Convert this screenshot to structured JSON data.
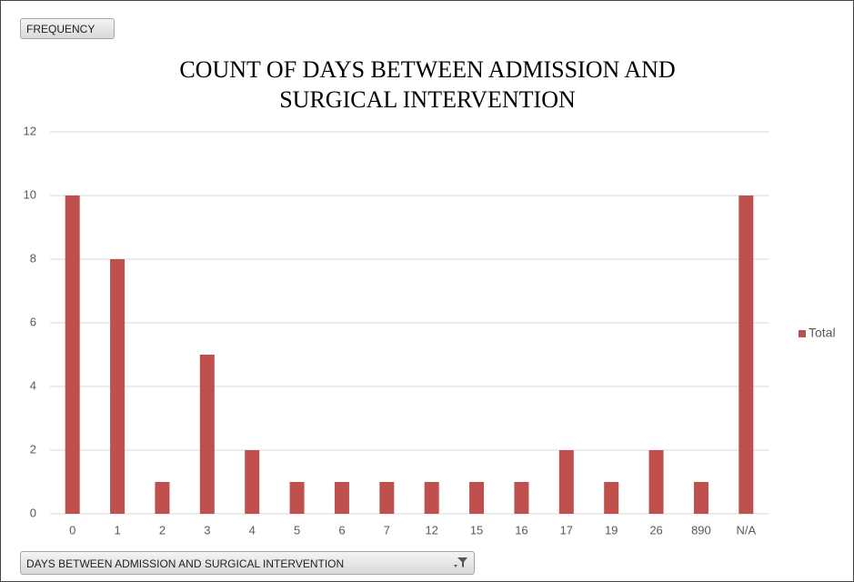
{
  "chart_data": {
    "type": "bar",
    "title": "COUNT OF DAYS BETWEEN ADMISSION AND SURGICAL INTERVENTION",
    "value_field_button": "FREQUENCY",
    "axis_field_button": "DAYS BETWEEN ADMISSION AND SURGICAL INTERVENTION",
    "categories": [
      "0",
      "1",
      "2",
      "3",
      "4",
      "5",
      "6",
      "7",
      "12",
      "15",
      "16",
      "17",
      "19",
      "26",
      "890",
      "N/A"
    ],
    "series": [
      {
        "name": "Total",
        "color": "#c0504d",
        "values": [
          10,
          8,
          1,
          5,
          2,
          1,
          1,
          1,
          1,
          1,
          1,
          2,
          1,
          2,
          1,
          10
        ]
      }
    ],
    "ylim": [
      0,
      12
    ],
    "yticks": [
      0,
      2,
      4,
      6,
      8,
      10,
      12
    ],
    "grid": true,
    "legend": "right"
  }
}
